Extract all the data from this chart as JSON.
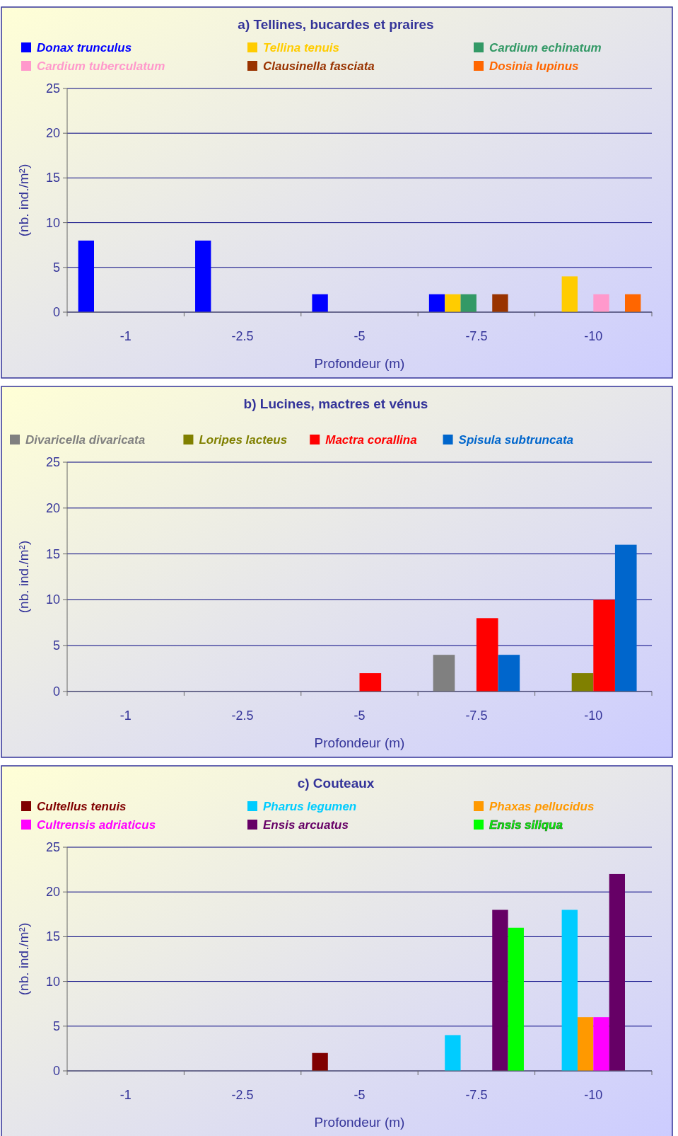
{
  "chart_data": [
    {
      "type": "bar",
      "title": "a) Tellines, bucardes et praires",
      "categories": [
        "-1",
        "-2.5",
        "-5",
        "-7.5",
        "-10"
      ],
      "xlabel": "Profondeur (m)",
      "ylabel": "(nb. ind./m²)",
      "ylim": [
        0,
        25
      ],
      "yticks": [
        0,
        5,
        10,
        15,
        20,
        25
      ],
      "grid": "y",
      "legend": "top",
      "series": [
        {
          "name": "Donax trunculus",
          "color": "#0000ff",
          "values": [
            8,
            8,
            2,
            2,
            0
          ]
        },
        {
          "name": "Tellina tenuis",
          "color": "#ffcc00",
          "values": [
            0,
            0,
            0,
            2,
            4
          ]
        },
        {
          "name": "Cardium echinatum",
          "color": "#339966",
          "values": [
            0,
            0,
            0,
            2,
            0
          ]
        },
        {
          "name": "Cardium tuberculatum",
          "color": "#ff99cc",
          "values": [
            0,
            0,
            0,
            0,
            2
          ]
        },
        {
          "name": "Clausinella fasciata",
          "color": "#993300",
          "values": [
            0,
            0,
            0,
            2,
            0
          ]
        },
        {
          "name": "Dosinia lupinus",
          "color": "#ff6600",
          "values": [
            0,
            0,
            0,
            0,
            2
          ]
        }
      ]
    },
    {
      "type": "bar",
      "title": "b) Lucines, mactres et vénus",
      "categories": [
        "-1",
        "-2.5",
        "-5",
        "-7.5",
        "-10"
      ],
      "xlabel": "Profondeur (m)",
      "ylabel": "(nb. ind./m²)",
      "ylim": [
        0,
        25
      ],
      "yticks": [
        0,
        5,
        10,
        15,
        20,
        25
      ],
      "grid": "y",
      "legend": "top",
      "series": [
        {
          "name": "Divaricella divaricata",
          "color": "#808080",
          "values": [
            0,
            0,
            0,
            4,
            0
          ]
        },
        {
          "name": "Loripes lacteus",
          "color": "#808000",
          "values": [
            0,
            0,
            0,
            0,
            2
          ]
        },
        {
          "name": "Mactra corallina",
          "color": "#ff0000",
          "values": [
            0,
            0,
            2,
            8,
            10
          ]
        },
        {
          "name": "Spisula subtruncata",
          "color": "#0066cc",
          "values": [
            0,
            0,
            0,
            4,
            16
          ]
        }
      ]
    },
    {
      "type": "bar",
      "title": "c) Couteaux",
      "categories": [
        "-1",
        "-2.5",
        "-5",
        "-7.5",
        "-10"
      ],
      "xlabel": "Profondeur (m)",
      "ylabel": "(nb. ind./m²)",
      "ylim": [
        0,
        25
      ],
      "yticks": [
        0,
        5,
        10,
        15,
        20,
        25
      ],
      "grid": "y",
      "legend": "top",
      "series": [
        {
          "name": "Cultellus tenuis",
          "color": "#800000",
          "values": [
            0,
            0,
            2,
            0,
            0
          ]
        },
        {
          "name": "Pharus legumen",
          "color": "#00ccff",
          "values": [
            0,
            0,
            0,
            4,
            18
          ]
        },
        {
          "name": "Phaxas pellucidus",
          "color": "#ff9900",
          "values": [
            0,
            0,
            0,
            0,
            6
          ]
        },
        {
          "name": "Cultrensis adriaticus",
          "color": "#ff00ff",
          "values": [
            0,
            0,
            0,
            0,
            6
          ]
        },
        {
          "name": "Ensis arcuatus",
          "color": "#660066",
          "values": [
            0,
            0,
            0,
            18,
            22
          ]
        },
        {
          "name": "Ensis siliqua",
          "color": "#00ff00",
          "values": [
            0,
            0,
            0,
            16,
            0
          ]
        }
      ]
    }
  ]
}
